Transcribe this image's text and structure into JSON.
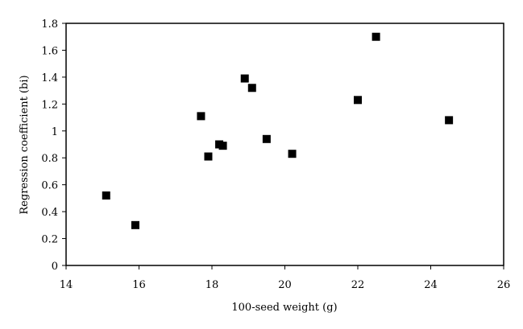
{
  "chart_data": {
    "type": "scatter",
    "xlabel": "100-seed weight (g)",
    "ylabel": "Regression coefficient (bi)",
    "xlim": [
      14,
      26
    ],
    "ylim": [
      0,
      1.8
    ],
    "xticks": [
      {
        "value": 14,
        "label": "14"
      },
      {
        "value": 16,
        "label": "16"
      },
      {
        "value": 18,
        "label": "18"
      },
      {
        "value": 20,
        "label": "20"
      },
      {
        "value": 22,
        "label": "22"
      },
      {
        "value": 24,
        "label": "24"
      },
      {
        "value": 26,
        "label": "26"
      }
    ],
    "yticks": [
      {
        "value": 0,
        "label": "0"
      },
      {
        "value": 0.2,
        "label": "0.2"
      },
      {
        "value": 0.4,
        "label": "0.4"
      },
      {
        "value": 0.6,
        "label": "0.6"
      },
      {
        "value": 0.8,
        "label": "0.8"
      },
      {
        "value": 1.0,
        "label": "1"
      },
      {
        "value": 1.2,
        "label": "1.2"
      },
      {
        "value": 1.4,
        "label": "1.4"
      },
      {
        "value": 1.6,
        "label": "1.6"
      },
      {
        "value": 1.8,
        "label": "1.8"
      }
    ],
    "grid": false,
    "legend": "none",
    "marker": "square",
    "marker_color": "#000000",
    "points": [
      {
        "x": 15.1,
        "y": 0.52
      },
      {
        "x": 15.9,
        "y": 0.3
      },
      {
        "x": 17.7,
        "y": 1.11
      },
      {
        "x": 17.9,
        "y": 0.81
      },
      {
        "x": 18.2,
        "y": 0.9
      },
      {
        "x": 18.3,
        "y": 0.89
      },
      {
        "x": 18.9,
        "y": 1.39
      },
      {
        "x": 19.1,
        "y": 1.32
      },
      {
        "x": 19.5,
        "y": 0.94
      },
      {
        "x": 20.2,
        "y": 0.83
      },
      {
        "x": 22.0,
        "y": 1.23
      },
      {
        "x": 22.5,
        "y": 1.7
      },
      {
        "x": 24.5,
        "y": 1.08
      }
    ]
  }
}
